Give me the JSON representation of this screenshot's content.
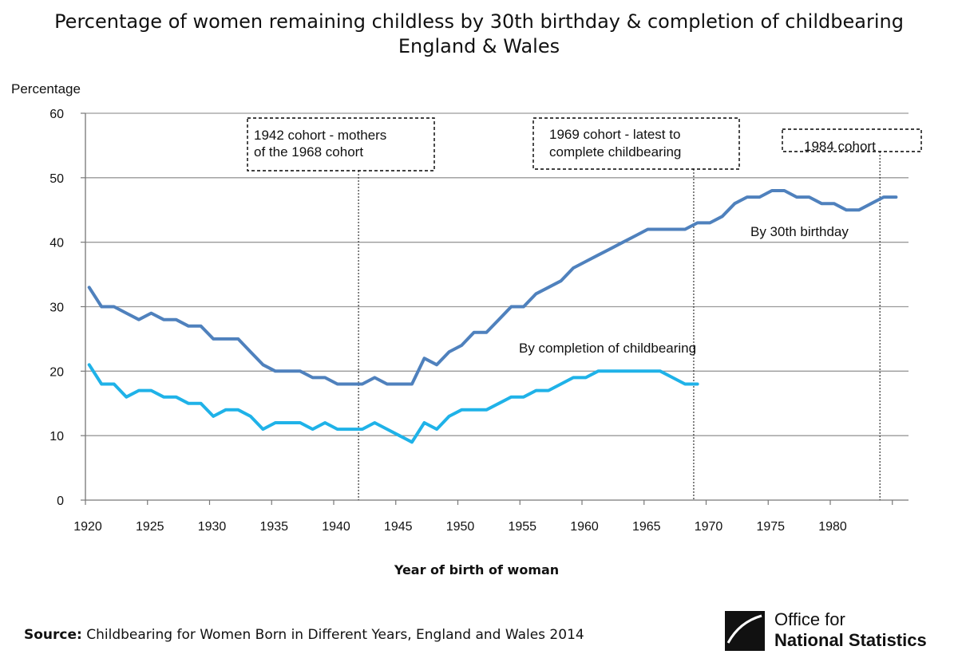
{
  "chart_data": {
    "type": "line",
    "title": "Percentage of women remaining childless by 30th birthday & completion of childbearing",
    "subtitle": "England & Wales",
    "xlabel": "Year of birth of woman",
    "ylabel": "Percentage",
    "xlim": [
      1920,
      1985
    ],
    "ylim": [
      0,
      60
    ],
    "xticks": [
      1920,
      1925,
      1930,
      1935,
      1940,
      1945,
      1950,
      1955,
      1960,
      1965,
      1970,
      1975,
      1980
    ],
    "yticks": [
      0,
      10,
      20,
      30,
      40,
      50,
      60
    ],
    "grid": "horizontal",
    "series": [
      {
        "name": "By 30th birthday",
        "color": "#4f81bd",
        "x": [
          1920,
          1921,
          1922,
          1923,
          1924,
          1925,
          1926,
          1927,
          1928,
          1929,
          1930,
          1931,
          1932,
          1933,
          1934,
          1935,
          1936,
          1937,
          1938,
          1939,
          1940,
          1941,
          1942,
          1943,
          1944,
          1945,
          1946,
          1947,
          1948,
          1949,
          1950,
          1951,
          1952,
          1953,
          1954,
          1955,
          1956,
          1957,
          1958,
          1959,
          1960,
          1961,
          1962,
          1963,
          1964,
          1965,
          1966,
          1967,
          1968,
          1969,
          1970,
          1971,
          1972,
          1973,
          1974,
          1975,
          1976,
          1977,
          1978,
          1979,
          1980,
          1981,
          1982,
          1983,
          1984,
          1985
        ],
        "values": [
          33,
          30,
          30,
          29,
          28,
          29,
          28,
          28,
          27,
          27,
          25,
          25,
          25,
          23,
          21,
          20,
          20,
          20,
          19,
          19,
          18,
          18,
          18,
          19,
          18,
          18,
          18,
          22,
          21,
          23,
          24,
          26,
          26,
          28,
          30,
          30,
          32,
          33,
          34,
          36,
          37,
          38,
          39,
          40,
          41,
          42,
          42,
          42,
          42,
          43,
          43,
          44,
          46,
          47,
          47,
          48,
          48,
          47,
          47,
          46,
          46,
          45,
          45,
          46,
          47,
          47
        ]
      },
      {
        "name": "By completion of  childbearing",
        "color": "#1fb2e8",
        "x": [
          1920,
          1921,
          1922,
          1923,
          1924,
          1925,
          1926,
          1927,
          1928,
          1929,
          1930,
          1931,
          1932,
          1933,
          1934,
          1935,
          1936,
          1937,
          1938,
          1939,
          1940,
          1941,
          1942,
          1943,
          1944,
          1945,
          1946,
          1947,
          1948,
          1949,
          1950,
          1951,
          1952,
          1953,
          1954,
          1955,
          1956,
          1957,
          1958,
          1959,
          1960,
          1961,
          1962,
          1963,
          1964,
          1965,
          1966,
          1967,
          1968,
          1969
        ],
        "values": [
          21,
          18,
          18,
          16,
          17,
          17,
          16,
          16,
          15,
          15,
          13,
          14,
          14,
          13,
          11,
          12,
          12,
          12,
          11,
          12,
          11,
          11,
          11,
          12,
          11,
          10,
          9,
          12,
          11,
          13,
          14,
          14,
          14,
          15,
          16,
          16,
          17,
          17,
          18,
          19,
          19,
          20,
          20,
          20,
          20,
          20,
          20,
          19,
          18,
          18
        ]
      }
    ],
    "annotations": [
      {
        "lines": [
          "1942 cohort - mothers",
          "of the 1968 cohort"
        ],
        "x": 1942
      },
      {
        "lines": [
          "1969 cohort - latest to",
          "complete childbearing"
        ],
        "x": 1969
      },
      {
        "lines": [
          "1984 cohort"
        ],
        "x": 1984
      }
    ]
  },
  "source": {
    "label": "Source:",
    "text": " Childbearing for Women Born in Different Years, England and Wales 2014"
  },
  "logo": {
    "line1": "Office for",
    "line2": "National Statistics"
  }
}
